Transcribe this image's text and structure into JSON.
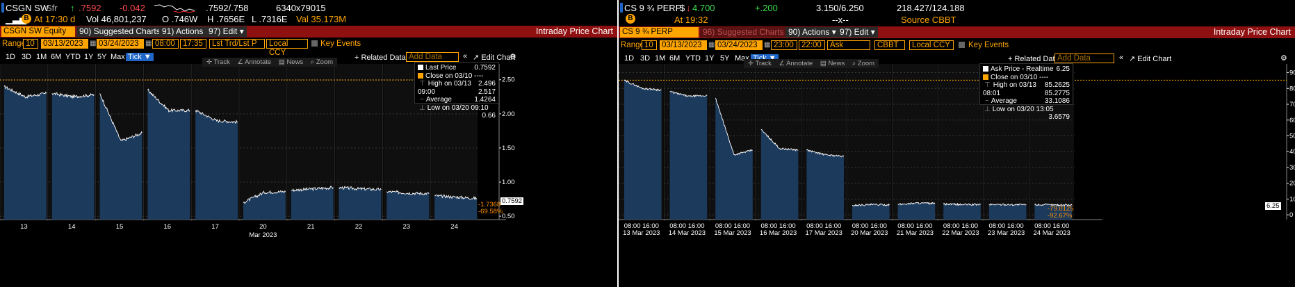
{
  "left": {
    "ticker": "CSGN SW",
    "ticker_suffix": "Sfr",
    "arrow": "↑",
    "last_price": ".7592",
    "change": "-0.042",
    "bid_ask": ".7592/.758",
    "size": "6340x79015",
    "at_time": "At 17:30 d",
    "vol": "Vol 46,801,237",
    "open": "O .746W",
    "high": "H .7656E",
    "low": "L .7316E",
    "val": "Val 35.173M",
    "title_field": "CSGN SW Equity",
    "menu": [
      "90) Suggested Charts ▾",
      "91) Actions ▾",
      "97) Edit ▾"
    ],
    "chart_title": "Intraday Price Chart",
    "range_label": "Range",
    "range_n": "10",
    "start_date": "03/13/2023",
    "end_date": "03/24/2023",
    "start_time": "08:00",
    "end_time": "17:35",
    "source_sel": "Lst Trd/Lst P",
    "ccy": "Local CCY",
    "key_events": "Key Events",
    "timeframes": [
      "1D",
      "3D",
      "1M",
      "6M",
      "YTD",
      "1Y",
      "5Y",
      "Max"
    ],
    "tick": "Tick ▼",
    "related": "+ Related Data ▾",
    "add_data": "Add Data",
    "edit_chart": "Edit Chart",
    "tools": [
      "Track",
      "Annotate",
      "News",
      "Zoom"
    ],
    "legend": {
      "items": [
        {
          "label": "Last Price",
          "value": "0.7592"
        },
        {
          "label": "Close on 03/10",
          "value": "2.496"
        },
        {
          "label": "High on 03/13 09:00",
          "value": "2.517"
        },
        {
          "label": "Average",
          "value": "1.4264"
        },
        {
          "label": "Low on 03/20 09:10",
          "value": "0.66"
        }
      ]
    },
    "last_tag": "0.7592",
    "pct_tags": [
      "-1.7368",
      "-69.58%"
    ],
    "month_label": "Mar 2023"
  },
  "right": {
    "ticker": "CS 9 ¾ PERP",
    "currency": "$",
    "arrow": "↓",
    "last_price": "4.700",
    "change": "+.200",
    "bid_ask": "3.150/6.250",
    "size": "218.427/124.188",
    "at_time": "At 19:32",
    "xx": "--x--",
    "source": "Source CBBT",
    "title_field": "CS 9 ¾ PERP REGS",
    "menu": [
      "96) Suggested Charts",
      "90) Actions ▾",
      "97) Edit ▾"
    ],
    "chart_title": "Intraday Price Chart",
    "range_label": "Range",
    "range_n": "10",
    "start_date": "03/13/2023",
    "end_date": "03/24/2023",
    "start_time": "23:00",
    "end_time": "22:00",
    "side": "Ask",
    "src": "CBBT",
    "ccy": "Local CCY",
    "key_events": "Key Events",
    "timeframes": [
      "1D",
      "3D",
      "1M",
      "6M",
      "YTD",
      "1Y",
      "5Y",
      "Max"
    ],
    "tick": "Tick ▼",
    "related": "+ Related Data ▾",
    "add_data": "Add Data",
    "edit_chart": "Edit Chart",
    "tools": [
      "Track",
      "Annotate",
      "News",
      "Zoom"
    ],
    "legend": {
      "items": [
        {
          "label": "Ask Price - Realtime",
          "value": "6.25"
        },
        {
          "label": "Close on 03/10",
          "value": "85.2625"
        },
        {
          "label": "High on 03/13 08:01",
          "value": "85.2775"
        },
        {
          "label": "Average",
          "value": "33.1086"
        },
        {
          "label": "Low on 03/20 13:05",
          "value": "3.6579"
        }
      ]
    },
    "last_tag": "6.25",
    "pct_tags": [
      "-79.0125",
      "-92.67%"
    ]
  },
  "colors": {
    "fill": "#1c3a5c",
    "line": "#ffffff",
    "accent": "#ffa500",
    "header_red": "#8f1010"
  },
  "chart_data": [
    {
      "type": "area",
      "series": [
        {
          "name": "Last Price",
          "daily": [
            {
              "day": "13",
              "open": 2.4,
              "mid": 2.25,
              "close": 2.3
            },
            {
              "day": "14",
              "open": 2.3,
              "mid": 2.25,
              "close": 2.28
            },
            {
              "day": "15",
              "open": 2.3,
              "mid": 1.6,
              "close": 1.72
            },
            {
              "day": "16",
              "open": 2.35,
              "mid": 2.05,
              "close": 2.05
            },
            {
              "day": "17",
              "open": 2.05,
              "mid": 1.9,
              "close": 1.88
            },
            {
              "day": "20",
              "open": 0.7,
              "mid": 0.85,
              "close": 0.86
            },
            {
              "day": "21",
              "open": 0.88,
              "mid": 0.9,
              "close": 0.92
            },
            {
              "day": "22",
              "open": 0.92,
              "mid": 0.9,
              "close": 0.89
            },
            {
              "day": "23",
              "open": 0.86,
              "mid": 0.84,
              "close": 0.83
            },
            {
              "day": "24",
              "open": 0.8,
              "mid": 0.78,
              "close": 0.76
            }
          ]
        }
      ],
      "x_ticks": [
        "13",
        "14",
        "15",
        "16",
        "17",
        "20",
        "21",
        "22",
        "23",
        "24"
      ],
      "xlabel": "Mar 2023",
      "y_ticks": [
        0.5,
        1.0,
        1.5,
        2.0,
        2.5
      ],
      "ylim": [
        0.45,
        2.65
      ],
      "reference_line": 2.496,
      "grid": true,
      "legend_position": "top-right"
    },
    {
      "type": "area",
      "series": [
        {
          "name": "Ask Price - Realtime",
          "daily": [
            {
              "day": "13 Mar 2023",
              "open": 85.0,
              "mid": 80.0,
              "close": 79.0
            },
            {
              "day": "14 Mar 2023",
              "open": 78.0,
              "mid": 75.0,
              "close": 75.5
            },
            {
              "day": "15 Mar 2023",
              "open": 74.0,
              "mid": 38.0,
              "close": 41.0
            },
            {
              "day": "16 Mar 2023",
              "open": 54.0,
              "mid": 42.0,
              "close": 41.0
            },
            {
              "day": "17 Mar 2023",
              "open": 41.0,
              "mid": 38.0,
              "close": 37.0
            },
            {
              "day": "20 Mar 2023",
              "open": 6.0,
              "mid": 6.5,
              "close": 6.3
            },
            {
              "day": "21 Mar 2023",
              "open": 6.5,
              "mid": 7.5,
              "close": 7.2
            },
            {
              "day": "22 Mar 2023",
              "open": 6.8,
              "mid": 6.5,
              "close": 6.6
            },
            {
              "day": "23 Mar 2023",
              "open": 6.6,
              "mid": 6.5,
              "close": 6.4
            },
            {
              "day": "24 Mar 2023",
              "open": 6.5,
              "mid": 6.3,
              "close": 6.25
            }
          ]
        }
      ],
      "x_ticks": [
        "13 Mar 2023",
        "14 Mar 2023",
        "15 Mar 2023",
        "16 Mar 2023",
        "17 Mar 2023",
        "20 Mar 2023",
        "21 Mar 2023",
        "22 Mar 2023",
        "23 Mar 2023",
        "24 Mar 2023"
      ],
      "session_times": [
        "08:00",
        "16:00"
      ],
      "y_ticks": [
        0,
        10,
        20,
        30,
        40,
        50,
        60,
        70,
        80,
        90
      ],
      "ylim": [
        -3,
        92
      ],
      "reference_line": 85.2625,
      "grid": true,
      "legend_position": "top-right"
    }
  ]
}
